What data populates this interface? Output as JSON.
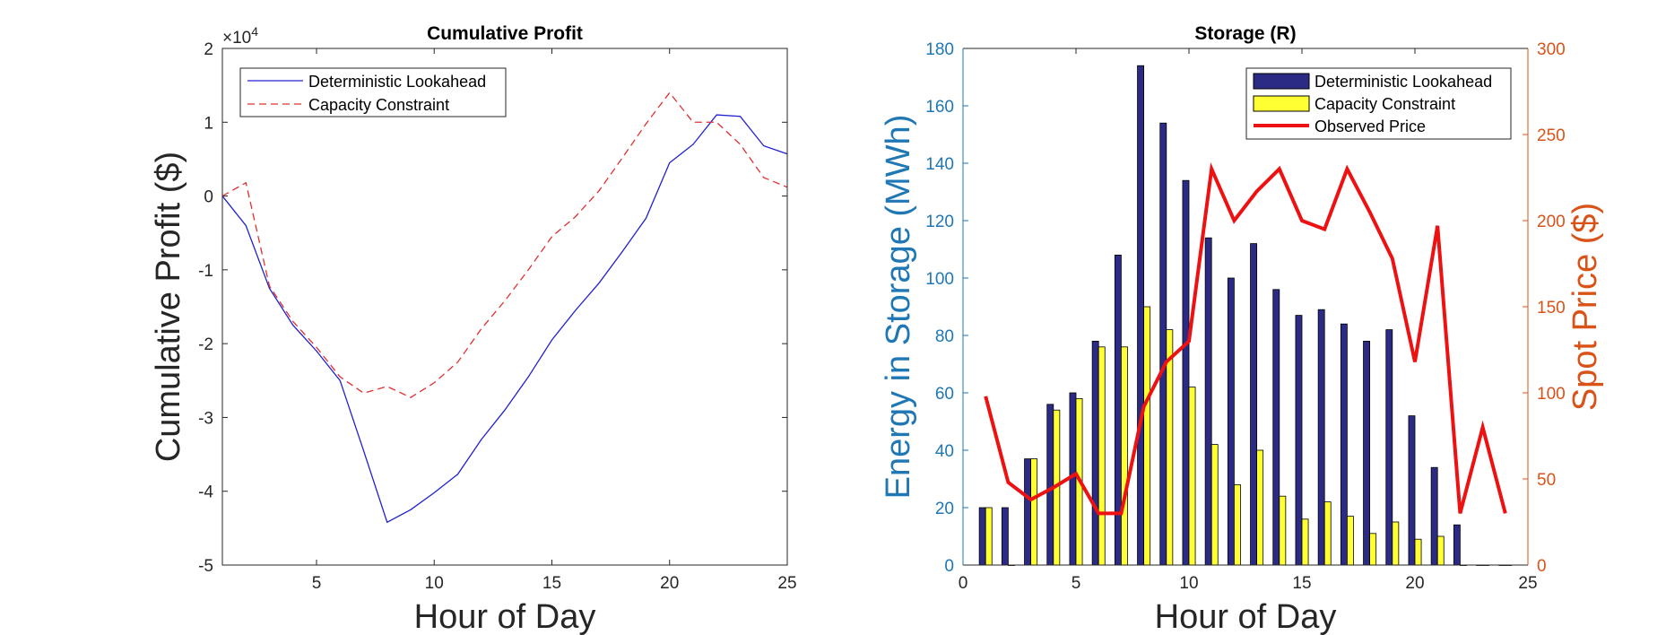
{
  "colors": {
    "blue_line": "#2020d0",
    "red_dashed": "#e03030",
    "bar_navy": "#2b2b86",
    "bar_yellow": "#ffff33",
    "price_red": "#ee1111",
    "axis_left_blue": "#1f77b4",
    "axis_right_orange": "#d95319"
  },
  "chart_data": [
    {
      "type": "line",
      "title": "Cumulative Profit",
      "xlabel": "Hour of Day",
      "ylabel": "Cumulative Profit ($)",
      "ylabel_parts": {
        "main": "Cumulative Profit ",
        "open": "(",
        "unit": "$",
        "close": ")"
      },
      "exponent_label": {
        "base": "×10",
        "power": "4"
      },
      "xlim": [
        1,
        25
      ],
      "ylim": [
        -5,
        2
      ],
      "x_ticks": [
        5,
        10,
        15,
        20,
        25
      ],
      "y_ticks": [
        -5,
        -4,
        -3,
        -2,
        -1,
        0,
        1,
        2
      ],
      "legend": {
        "position": "top-left"
      },
      "series": [
        {
          "name": "Deterministic Lookahead",
          "style": "solid",
          "x": [
            1,
            2,
            3,
            4,
            5,
            6,
            7,
            8,
            9,
            10,
            11,
            12,
            13,
            14,
            15,
            16,
            17,
            18,
            19,
            20,
            21,
            22,
            23,
            24,
            25
          ],
          "values": [
            0,
            -0.4,
            -1.25,
            -1.75,
            -2.1,
            -2.5,
            -3.45,
            -4.42,
            -4.25,
            -4.02,
            -3.77,
            -3.3,
            -2.9,
            -2.45,
            -1.95,
            -1.55,
            -1.18,
            -0.75,
            -0.3,
            0.45,
            0.7,
            1.1,
            1.08,
            0.68,
            0.57
          ]
        },
        {
          "name": "Capacity Constraint",
          "style": "dashed",
          "x": [
            1,
            2,
            3,
            4,
            5,
            6,
            7,
            8,
            9,
            10,
            11,
            12,
            13,
            14,
            15,
            16,
            17,
            18,
            19,
            20,
            21,
            22,
            23,
            24,
            25
          ],
          "values": [
            0,
            0.18,
            -1.22,
            -1.7,
            -2.05,
            -2.45,
            -2.67,
            -2.58,
            -2.73,
            -2.53,
            -2.25,
            -1.8,
            -1.42,
            -1.0,
            -0.55,
            -0.28,
            0.07,
            0.52,
            0.98,
            1.4,
            1.0,
            1.0,
            0.7,
            0.25,
            0.12
          ]
        }
      ]
    },
    {
      "type": "bar",
      "title": "Storage (R)",
      "xlabel": "Hour of Day",
      "ylabel_left": "Energy in Storage (MWh)",
      "ylabel_right": "Spot Price ($)",
      "xlim": [
        0,
        25
      ],
      "ylim_left": [
        0,
        180
      ],
      "ylim_right": [
        0,
        300
      ],
      "x_ticks": [
        0,
        5,
        10,
        15,
        20,
        25
      ],
      "y_ticks_left": [
        0,
        20,
        40,
        60,
        80,
        100,
        120,
        140,
        160,
        180
      ],
      "y_ticks_right": [
        0,
        50,
        100,
        150,
        200,
        250,
        300
      ],
      "legend": {
        "position": "top-right"
      },
      "categories": [
        1,
        2,
        3,
        4,
        5,
        6,
        7,
        8,
        9,
        10,
        11,
        12,
        13,
        14,
        15,
        16,
        17,
        18,
        19,
        20,
        21,
        22,
        23,
        24
      ],
      "series": [
        {
          "name": "Deterministic Lookahead",
          "kind": "bar",
          "axis": "left",
          "values": [
            20,
            20,
            37,
            56,
            60,
            78,
            108,
            174,
            154,
            134,
            114,
            100,
            112,
            96,
            87,
            89,
            84,
            78,
            82,
            52,
            34,
            14,
            0,
            0
          ]
        },
        {
          "name": "Capacity Constraint",
          "kind": "bar",
          "axis": "left",
          "values": [
            20,
            0,
            37,
            54,
            58,
            76,
            76,
            90,
            82,
            62,
            42,
            28,
            40,
            24,
            16,
            22,
            17,
            11,
            15,
            9,
            10,
            0,
            0,
            0
          ]
        },
        {
          "name": "Observed Price",
          "kind": "line",
          "axis": "right",
          "values": [
            98,
            48,
            38,
            45,
            53,
            30,
            30,
            92,
            118,
            130,
            230,
            200,
            217,
            230,
            200,
            195,
            230,
            205,
            178,
            118,
            197,
            30,
            80,
            30
          ]
        }
      ]
    }
  ]
}
